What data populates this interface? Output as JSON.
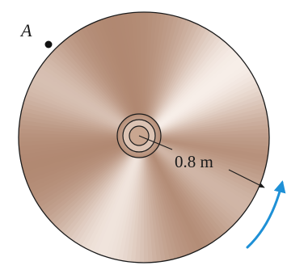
{
  "labels": {
    "point": "A",
    "radius": "0.8 m"
  },
  "colors": {
    "disk_dark": "#b08770",
    "disk_mid": "#cfae99",
    "disk_light": "#f7eee8",
    "outline": "#1a1a1a",
    "rotation_arrow": "#1e90d6"
  }
}
